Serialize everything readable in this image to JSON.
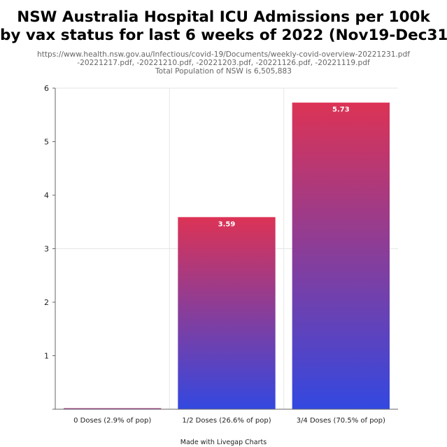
{
  "header": {
    "title_line1": "NSW Australia Hospital ICU Admissions per 100k",
    "title_line2": "by vax status for last 6 weeks of 2022 (Nov19-Dec31)",
    "subtitle_line1": "https://www.health.nsw.gov.au/Infectious/covid-19/Documents/weekly-covid-overview-20221231.pdf",
    "subtitle_line2": "-20221217.pdf, -20221210.pdf, -20221203.pdf, -20221126.pdf, -20221119.pdf",
    "subtitle_line3": "Total Population of NSW is 6,505,883"
  },
  "footer": {
    "credit": "Made with Livegap Charts"
  },
  "colors": {
    "bar_top": "#dc3355",
    "bar_bottom": "#3348e0",
    "grid": "#e6e6e6",
    "axis": "#666666"
  },
  "chart_data": {
    "type": "bar",
    "title": "NSW Australia Hospital ICU Admissions per 100k by vax status for last 6 weeks of 2022 (Nov19-Dec31)",
    "categories": [
      "0 Doses (2.9% of pop)",
      "1/2 Doses (26.6% of pop)",
      "3/4 Doses (70.5% of pop)"
    ],
    "values": [
      0,
      3.59,
      5.73
    ],
    "data_labels": [
      "",
      "3.59",
      "5.73"
    ],
    "xlabel": "",
    "ylabel": "",
    "ylim": [
      0,
      6
    ],
    "yticks": [
      "0",
      "1",
      "2",
      "3",
      "4",
      "5",
      "6"
    ],
    "grid": true,
    "legend": "none"
  }
}
